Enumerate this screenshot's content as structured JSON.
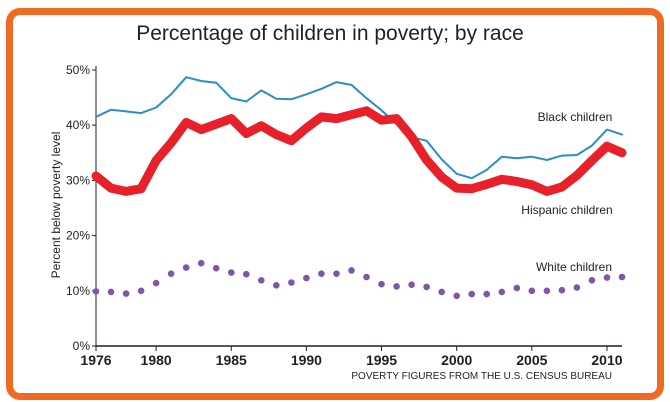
{
  "colors": {
    "frame": "#f06a23",
    "black_series": "#2a8fc4",
    "hispanic_series": "#e8202a",
    "white_series": "#7d57a8",
    "text": "#231f20"
  },
  "chart_data": {
    "type": "line",
    "title": "Percentage of children in poverty; by race",
    "xlabel": "",
    "ylabel": "Percent below poverty level",
    "xlim": [
      1976,
      2011
    ],
    "ylim": [
      0,
      50
    ],
    "x_ticks": [
      "1976",
      "1980",
      "1985",
      "1990",
      "1995",
      "2000",
      "2005",
      "2010"
    ],
    "y_ticks": [
      "0%",
      "10%",
      "20%",
      "30%",
      "40%",
      "50%"
    ],
    "grid": false,
    "source": "POVERTY FIGURES FROM THE U.S. CENSUS BUREAU",
    "x": [
      1976,
      1977,
      1978,
      1979,
      1980,
      1981,
      1982,
      1983,
      1984,
      1985,
      1986,
      1987,
      1988,
      1989,
      1990,
      1991,
      1992,
      1993,
      1994,
      1995,
      1996,
      1997,
      1998,
      1999,
      2000,
      2001,
      2002,
      2003,
      2004,
      2005,
      2006,
      2007,
      2008,
      2009,
      2010,
      2011
    ],
    "series": [
      {
        "name": "Black children",
        "style": "thin-line",
        "values": [
          41.5,
          42.8,
          42.5,
          42.2,
          43.2,
          45.6,
          48.7,
          48.0,
          47.7,
          44.9,
          44.3,
          46.3,
          44.8,
          44.7,
          45.6,
          46.6,
          47.8,
          47.3,
          44.9,
          42.7,
          40.2,
          37.8,
          37.2,
          33.8,
          31.2,
          30.4,
          31.9,
          34.3,
          34.0,
          34.3,
          33.7,
          34.5,
          34.6,
          36.3,
          39.2,
          38.3
        ]
      },
      {
        "name": "Hispanic children",
        "style": "thick-line",
        "values": [
          30.8,
          28.6,
          28.0,
          28.5,
          33.6,
          36.8,
          40.5,
          39.2,
          40.2,
          41.2,
          38.5,
          39.9,
          38.3,
          37.2,
          39.5,
          41.5,
          41.2,
          41.9,
          42.6,
          40.9,
          41.2,
          37.9,
          33.7,
          30.6,
          28.6,
          28.5,
          29.3,
          30.2,
          29.8,
          29.2,
          28.0,
          28.8,
          30.9,
          33.6,
          36.2,
          35.0
        ]
      },
      {
        "name": "White children",
        "style": "dotted",
        "values": [
          9.9,
          9.8,
          9.5,
          10.0,
          11.4,
          13.1,
          14.2,
          15.0,
          14.1,
          13.3,
          13.0,
          11.9,
          11.0,
          11.5,
          12.3,
          13.1,
          13.1,
          13.7,
          12.5,
          11.2,
          10.8,
          11.1,
          10.7,
          9.8,
          9.1,
          9.4,
          9.4,
          9.8,
          10.5,
          10.0,
          10.0,
          10.1,
          10.6,
          11.9,
          12.4,
          12.5
        ]
      }
    ]
  }
}
